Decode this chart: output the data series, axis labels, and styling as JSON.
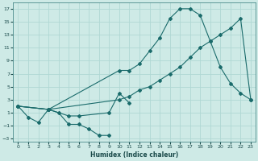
{
  "xlabel": "Humidex (Indice chaleur)",
  "bg_color": "#ceeae6",
  "grid_color": "#b0d8d4",
  "line_color": "#1a6b6b",
  "xlim": [
    -0.5,
    23.5
  ],
  "ylim": [
    -3.5,
    18
  ],
  "yticks": [
    -3,
    -1,
    1,
    3,
    5,
    7,
    9,
    11,
    13,
    15,
    17
  ],
  "xticks": [
    0,
    1,
    2,
    3,
    4,
    5,
    6,
    7,
    8,
    9,
    10,
    11,
    12,
    13,
    14,
    15,
    16,
    17,
    18,
    19,
    20,
    21,
    22,
    23
  ],
  "line1_x": [
    0,
    1,
    2,
    3,
    4,
    5,
    6,
    7,
    8,
    9
  ],
  "line1_y": [
    2,
    0.3,
    -0.5,
    1.5,
    1.0,
    -0.8,
    -0.8,
    -1.5,
    -2.5,
    -2.5
  ],
  "line2_x": [
    0,
    3,
    5,
    6,
    9,
    10,
    11
  ],
  "line2_y": [
    2,
    1.5,
    0.5,
    0.5,
    1.0,
    4.0,
    2.5
  ],
  "line3_x": [
    0,
    3,
    10,
    11,
    12,
    13,
    14,
    15,
    16,
    17,
    18,
    19,
    20,
    21,
    22,
    23
  ],
  "line3_y": [
    2,
    1.5,
    7.5,
    7.5,
    8.5,
    10.5,
    12.5,
    15.5,
    17.0,
    17.0,
    16.0,
    12.0,
    8.0,
    5.5,
    4.0,
    3.0
  ],
  "line4_x": [
    0,
    3,
    10,
    11,
    12,
    13,
    14,
    15,
    16,
    17,
    18,
    19,
    20,
    21,
    22,
    23
  ],
  "line4_y": [
    2,
    1.5,
    3.0,
    3.5,
    4.5,
    5.0,
    6.0,
    7.0,
    8.0,
    9.5,
    11.0,
    12.0,
    13.0,
    14.0,
    15.5,
    3.0
  ]
}
